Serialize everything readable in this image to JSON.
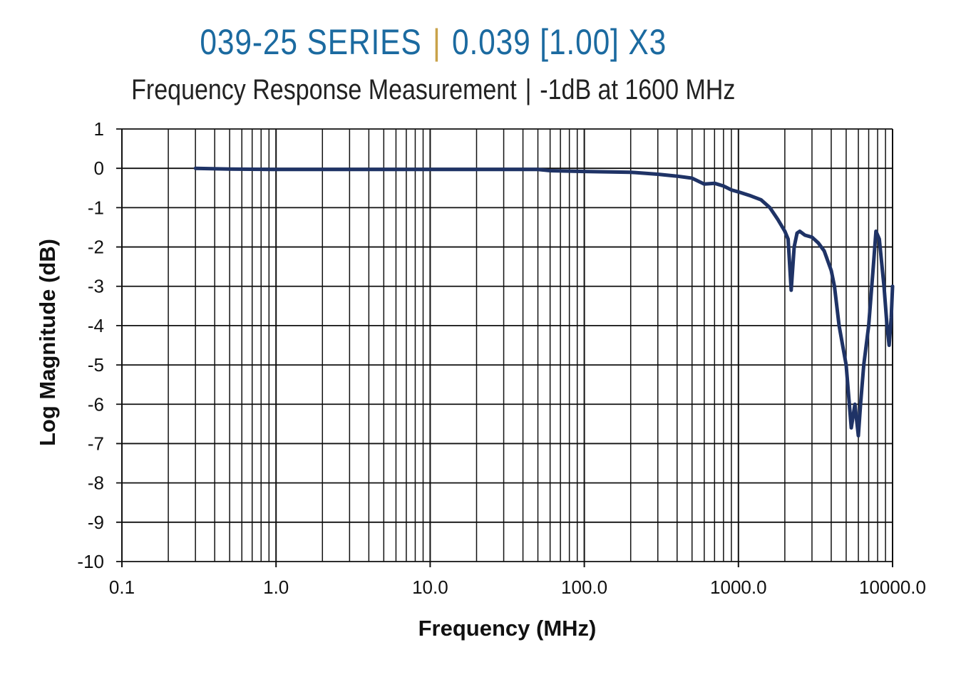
{
  "header": {
    "title_left": "039-25 SERIES",
    "title_sep": "|",
    "title_right": "0.039 [1.00] X3",
    "subtitle_left": "Frequency Response Measurement",
    "subtitle_sep": "|",
    "subtitle_right": "-1dB at 1600 MHz"
  },
  "colors": {
    "title": "#1b6aa0",
    "separator": "#c9a24a",
    "line": "#1f3366",
    "grid": "#111111"
  },
  "chart_data": {
    "type": "line",
    "title": "039-25 SERIES | 0.039 [1.00] X3",
    "subtitle": "Frequency Response Measurement | -1dB at 1600 MHz",
    "xlabel": "Frequency (MHz)",
    "ylabel": "Log Magnitude (dB)",
    "xscale": "log",
    "xlim": [
      0.1,
      10000
    ],
    "ylim": [
      -10,
      1
    ],
    "grid": true,
    "xticks": [
      "0.1",
      "1.0",
      "10.0",
      "100.0",
      "1000.0",
      "10000.0"
    ],
    "yticks": [
      "1",
      "0",
      "-1",
      "-2",
      "-3",
      "-4",
      "-5",
      "-6",
      "-7",
      "-8",
      "-9",
      "-10"
    ],
    "series": [
      {
        "name": "Log Magnitude",
        "x": [
          0.3,
          0.5,
          1.0,
          2.0,
          10,
          50,
          60,
          100,
          200,
          300,
          400,
          500,
          600,
          700,
          800,
          900,
          1000,
          1100,
          1200,
          1400,
          1600,
          1800,
          2000,
          2100,
          2200,
          2300,
          2400,
          2500,
          2700,
          3000,
          3300,
          3600,
          4000,
          4200,
          4500,
          5000,
          5400,
          5700,
          6000,
          6200,
          6500,
          7000,
          7500,
          7800,
          8200,
          8800,
          9200,
          9500,
          9800,
          10000
        ],
        "y": [
          0,
          -0.02,
          -0.03,
          -0.03,
          -0.03,
          -0.03,
          -0.06,
          -0.08,
          -0.1,
          -0.15,
          -0.2,
          -0.25,
          -0.4,
          -0.38,
          -0.45,
          -0.55,
          -0.6,
          -0.65,
          -0.7,
          -0.8,
          -1.0,
          -1.3,
          -1.6,
          -1.8,
          -3.1,
          -2.0,
          -1.65,
          -1.6,
          -1.7,
          -1.75,
          -1.9,
          -2.1,
          -2.6,
          -3.0,
          -4.0,
          -5.0,
          -6.6,
          -6.0,
          -6.8,
          -6.0,
          -5.0,
          -4.0,
          -2.5,
          -1.6,
          -1.8,
          -3.0,
          -4.0,
          -4.5,
          -3.8,
          -3.0
        ]
      }
    ]
  }
}
